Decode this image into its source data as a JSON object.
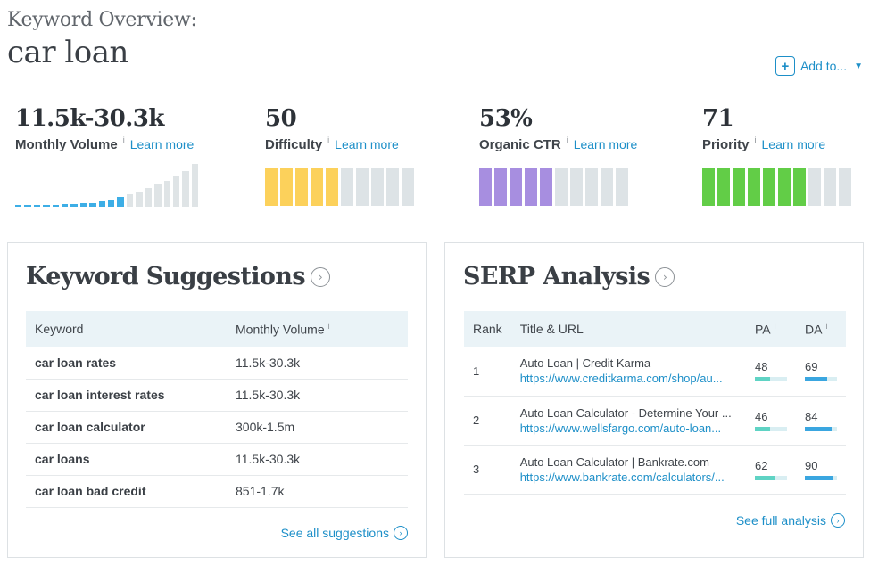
{
  "header": {
    "kicker": "Keyword Overview:",
    "keyword": "car loan",
    "add_to_label": "Add to...",
    "plus_glyph": "+",
    "caret_glyph": "▼"
  },
  "metrics": {
    "volume": {
      "value": "11.5k-30.3k",
      "label": "Monthly Volume",
      "info": "i",
      "learn": "Learn more"
    },
    "difficulty": {
      "value": "50",
      "label": "Difficulty",
      "info": "i",
      "learn": "Learn more",
      "fraction": 0.5,
      "color": "#fcd15b"
    },
    "ctr": {
      "value": "53%",
      "label": "Organic CTR",
      "info": "i",
      "learn": "Learn more",
      "fraction": 0.53,
      "color": "#a78ee0"
    },
    "priority": {
      "value": "71",
      "label": "Priority",
      "info": "i",
      "learn": "Learn more",
      "fraction": 0.71,
      "color": "#62cd47"
    }
  },
  "colors": {
    "accent": "#1d8fc8",
    "bar_empty": "#dde3e6",
    "vol_highlight": "#3daee6",
    "vol_gray": "#dfe4e6",
    "pa_fill": "#5fd3c4",
    "da_fill": "#3aa6e0"
  },
  "suggestions": {
    "title": "Keyword Suggestions",
    "arrow_glyph": "›",
    "col_keyword": "Keyword",
    "col_volume": "Monthly Volume",
    "info": "i",
    "rows": [
      {
        "keyword": "car loan rates",
        "volume": "11.5k-30.3k"
      },
      {
        "keyword": "car loan interest rates",
        "volume": "11.5k-30.3k"
      },
      {
        "keyword": "car loan calculator",
        "volume": "300k-1.5m"
      },
      {
        "keyword": "car loans",
        "volume": "11.5k-30.3k"
      },
      {
        "keyword": "car loan bad credit",
        "volume": "851-1.7k"
      }
    ],
    "see_all": "See all suggestions"
  },
  "serp": {
    "title": "SERP Analysis",
    "arrow_glyph": "›",
    "col_rank": "Rank",
    "col_title": "Title & URL",
    "col_pa": "PA",
    "col_da": "DA",
    "info": "i",
    "rows": [
      {
        "rank": "1",
        "title": "Auto Loan | Credit Karma",
        "url": "https://www.creditkarma.com/shop/au...",
        "pa": "48",
        "da": "69"
      },
      {
        "rank": "2",
        "title": "Auto Loan Calculator - Determine Your ...",
        "url": "https://www.wellsfargo.com/auto-loan...",
        "pa": "46",
        "da": "84"
      },
      {
        "rank": "3",
        "title": "Auto Loan Calculator | Bankrate.com",
        "url": "https://www.bankrate.com/calculators/...",
        "pa": "62",
        "da": "90"
      }
    ],
    "see_full": "See full analysis"
  }
}
